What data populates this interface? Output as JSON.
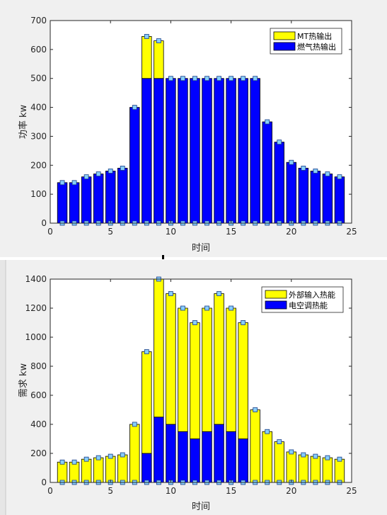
{
  "colors": {
    "background": "#f0f0f0",
    "axes_bg": "#ffffff",
    "yellow": "#ffff00",
    "blue": "#0000ff",
    "marker": "#87cefa",
    "marker_edge": "#1a3e88",
    "axis": "#262626"
  },
  "chart_data": [
    {
      "type": "bar",
      "stacked": true,
      "xlabel": "时间",
      "ylabel": "功率 kw",
      "xlim": [
        0,
        25
      ],
      "ylim": [
        0,
        700
      ],
      "xticks": [
        0,
        5,
        10,
        15,
        20,
        25
      ],
      "yticks": [
        0,
        100,
        200,
        300,
        400,
        500,
        600,
        700
      ],
      "legend_position": "top-right",
      "x": [
        1,
        2,
        3,
        4,
        5,
        6,
        7,
        8,
        9,
        10,
        11,
        12,
        13,
        14,
        15,
        16,
        17,
        18,
        19,
        20,
        21,
        22,
        23,
        24
      ],
      "series": [
        {
          "name": "MT热输出",
          "color": "#ffff00",
          "values": [
            0,
            0,
            0,
            0,
            0,
            0,
            0,
            145,
            130,
            0,
            0,
            0,
            0,
            0,
            0,
            0,
            0,
            0,
            0,
            0,
            0,
            0,
            0,
            0
          ]
        },
        {
          "name": "燃气热输出",
          "color": "#0000ff",
          "values": [
            140,
            140,
            160,
            170,
            180,
            190,
            400,
            500,
            500,
            500,
            500,
            500,
            500,
            500,
            500,
            500,
            500,
            350,
            280,
            210,
            190,
            180,
            170,
            160
          ]
        }
      ],
      "totals": [
        140,
        140,
        160,
        170,
        180,
        190,
        400,
        645,
        630,
        500,
        500,
        500,
        500,
        500,
        500,
        500,
        500,
        350,
        280,
        210,
        190,
        180,
        170,
        160
      ]
    },
    {
      "type": "bar",
      "stacked": true,
      "xlabel": "时间",
      "ylabel": "需求 kw",
      "xlim": [
        0,
        25
      ],
      "ylim": [
        0,
        1400
      ],
      "xticks": [
        0,
        5,
        10,
        15,
        20,
        25
      ],
      "yticks": [
        0,
        200,
        400,
        600,
        800,
        1000,
        1200,
        1400
      ],
      "legend_position": "top-right",
      "x": [
        1,
        2,
        3,
        4,
        5,
        6,
        7,
        8,
        9,
        10,
        11,
        12,
        13,
        14,
        15,
        16,
        17,
        18,
        19,
        20,
        21,
        22,
        23,
        24
      ],
      "series": [
        {
          "name": "外部输入热能",
          "color": "#ffff00",
          "values": [
            140,
            140,
            160,
            170,
            180,
            190,
            400,
            700,
            950,
            900,
            850,
            800,
            850,
            900,
            850,
            800,
            500,
            350,
            280,
            210,
            190,
            180,
            170,
            160
          ]
        },
        {
          "name": "电空调热能",
          "color": "#0000ff",
          "values": [
            0,
            0,
            0,
            0,
            0,
            0,
            0,
            200,
            450,
            400,
            350,
            300,
            350,
            400,
            350,
            300,
            0,
            0,
            0,
            0,
            0,
            0,
            0,
            0
          ]
        }
      ],
      "totals": [
        140,
        140,
        160,
        170,
        180,
        190,
        400,
        900,
        1400,
        1300,
        1200,
        1100,
        1200,
        1300,
        1200,
        1100,
        500,
        350,
        280,
        210,
        190,
        180,
        170,
        160
      ]
    }
  ]
}
